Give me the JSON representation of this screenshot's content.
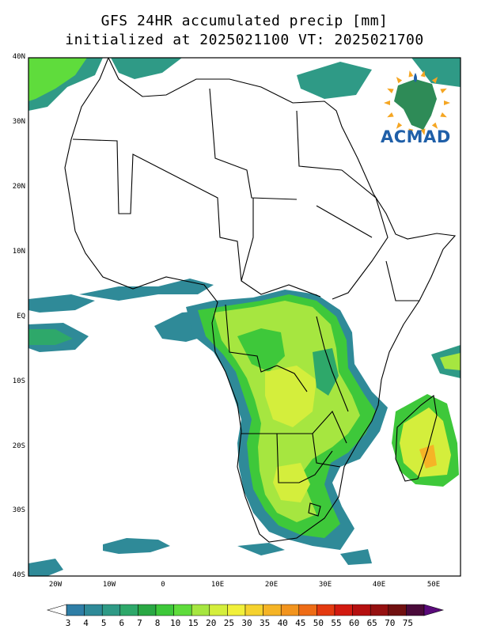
{
  "title": {
    "line1": "GFS 24HR accumulated precip [mm]",
    "line2": "initialized at 2025021100 VT: 2025021700"
  },
  "lat_labels": [
    "40N",
    "30N",
    "20N",
    "10N",
    "EQ",
    "10S",
    "20S",
    "30S",
    "40S"
  ],
  "lon_labels": [
    "20W",
    "10W",
    "0",
    "10E",
    "20E",
    "30E",
    "40E",
    "50E"
  ],
  "colorbar": {
    "values": [
      "3",
      "4",
      "5",
      "6",
      "7",
      "8",
      "10",
      "15",
      "20",
      "25",
      "30",
      "35",
      "40",
      "45",
      "50",
      "55",
      "60",
      "65",
      "70",
      "75"
    ],
    "colors": [
      "#2f7ea6",
      "#2f8a98",
      "#2f9a86",
      "#2ea86a",
      "#2aa844",
      "#3ec83a",
      "#5fdc3c",
      "#a6e640",
      "#d4ee3c",
      "#f1f03a",
      "#f5d22e",
      "#f5b426",
      "#f2941e",
      "#ee6c16",
      "#e43a10",
      "#d21a10",
      "#b51010",
      "#951010",
      "#701010",
      "#4a0a3a"
    ]
  },
  "logo": {
    "text": "ACMAD"
  },
  "map": {
    "projection": "lat-lon",
    "lon_range": [
      -25,
      55
    ],
    "lat_range": [
      -40,
      40
    ]
  }
}
